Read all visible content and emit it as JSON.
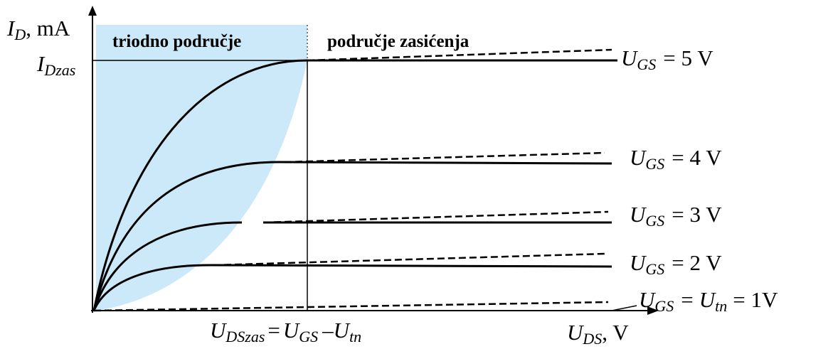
{
  "y_axis_label": {
    "symbol": "I",
    "subscript": "D",
    "unit": ", mA"
  },
  "saturation_current": {
    "symbol": "I",
    "subscript": "Dzas"
  },
  "regions": {
    "triode": "triodno područje",
    "saturation": "područje zasićenja"
  },
  "curves": [
    {
      "symbol": "U",
      "subscript": "GS",
      "value": "= 5 V"
    },
    {
      "symbol": "U",
      "subscript": "GS",
      "value": "= 4 V"
    },
    {
      "symbol": "U",
      "subscript": "GS",
      "value": "= 3 V"
    },
    {
      "symbol": "U",
      "subscript": "GS",
      "value": "= 2 V"
    },
    {
      "symbol": "U",
      "subscript": "GS",
      "equals": "=",
      "symbol2": "U",
      "subscript2": "tn",
      "value": "= 1V"
    }
  ],
  "boundary_label": {
    "symbol": "U",
    "subscript": "DSzas",
    "equals": "=",
    "symbol2": "U",
    "subscript2": "GS",
    "minus": "–",
    "symbol3": "U",
    "subscript3": "tn"
  },
  "x_axis_label": {
    "symbol": "U",
    "subscript": "DS",
    "unit": ", V"
  }
}
